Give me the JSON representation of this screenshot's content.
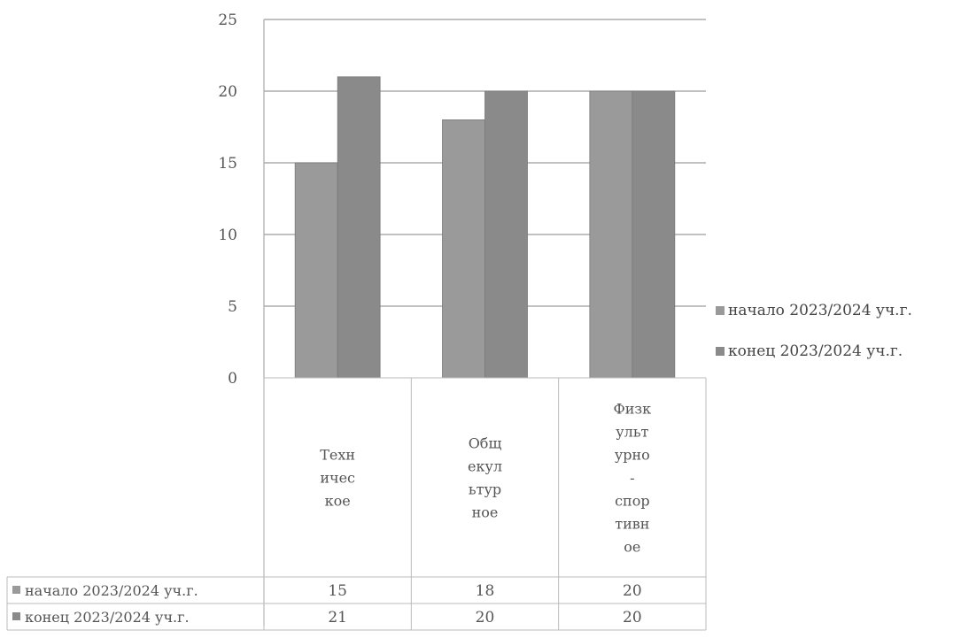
{
  "chart_data": {
    "type": "bar",
    "categories": [
      "Техническое",
      "Общекультурное",
      "Физкультурно-спортивное"
    ],
    "category_lines": [
      [
        "Техн",
        "ичес",
        "кое"
      ],
      [
        "Общ",
        "екул",
        "ьтур",
        "ное"
      ],
      [
        "Физк",
        "ульт",
        "урно",
        "-",
        "спор",
        "тивн",
        "ое"
      ]
    ],
    "series": [
      {
        "name": "начало 2023/2024 уч.г.",
        "values": [
          15,
          18,
          20
        ],
        "color": "#9a9a9a"
      },
      {
        "name": "конец 2023/2024 уч.г.",
        "values": [
          21,
          20,
          20
        ],
        "color": "#8a8a8a"
      }
    ],
    "ylim": [
      0,
      25
    ],
    "yticks": [
      0,
      5,
      10,
      15,
      20,
      25
    ],
    "grid": true,
    "legend": "right",
    "data_table": true,
    "title": "",
    "xlabel": "",
    "ylabel": ""
  }
}
